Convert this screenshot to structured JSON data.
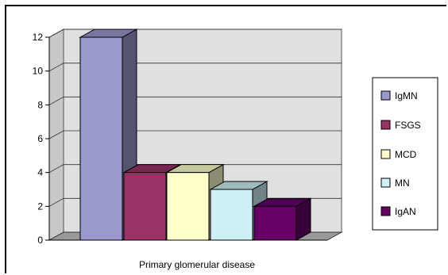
{
  "chart_data": {
    "type": "bar",
    "style": "3d",
    "categories": [
      "IgMN",
      "FSGS",
      "MCD",
      "MN",
      "IgAN"
    ],
    "values": [
      12,
      4,
      4,
      3,
      2
    ],
    "colors": [
      "#9999cc",
      "#993366",
      "#ffffcc",
      "#ccf0f4",
      "#660066"
    ],
    "title": "",
    "xlabel": "Primary glomerular disease",
    "ylabel": "",
    "ylim": [
      0,
      12
    ],
    "yticks": [
      0,
      2,
      4,
      6,
      8,
      10,
      12
    ],
    "grid": true,
    "legend": {
      "placement": "right",
      "entries": [
        "IgMN",
        "FSGS",
        "MCD",
        "MN",
        "IgAN"
      ]
    }
  }
}
